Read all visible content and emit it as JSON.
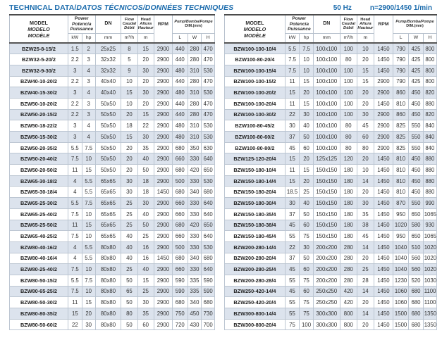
{
  "page": {
    "title_en": "TECHNICAL DATA/",
    "title_intl": "DATOS TÉCNICOS/DONNÉES TECHNIQUES",
    "frequency": "50 Hz",
    "speed": "n=2900/1450 1/min"
  },
  "colors": {
    "accent_blue": "#1c6cad",
    "row_shade": "#dce3ed",
    "border_light": "#b7c1cd",
    "border_dark": "#4b4b4b"
  },
  "header": {
    "model": [
      "MODEL",
      "MODELO",
      "MODÈLE"
    ],
    "power": [
      "Power",
      "Potencia",
      "Puissance"
    ],
    "dn": "DN",
    "flow": [
      "Flow",
      "Caudal",
      "Débit"
    ],
    "head": [
      "Head",
      "Altura",
      "Hauteur"
    ],
    "rpm": "RPM",
    "dim": [
      "Pump/Bomba/Pompe",
      "DIM.(mm)"
    ],
    "units": {
      "kw": "kW",
      "hp": "hp",
      "mm": "mm",
      "flow": "m³/h",
      "head": "m",
      "l": "L",
      "w": "W",
      "h": "H"
    }
  },
  "tables": {
    "left": {
      "rows": [
        [
          "BZW25-8-15/2",
          "1.5",
          "2",
          "25x25",
          "8",
          "15",
          "2900",
          "440",
          "280",
          "470"
        ],
        [
          "BZW32-5-20/2",
          "2.2",
          "3",
          "32x32",
          "5",
          "20",
          "2900",
          "440",
          "280",
          "470"
        ],
        [
          "BZW32-9-30/2",
          "3",
          "4",
          "32x32",
          "9",
          "30",
          "2900",
          "480",
          "310",
          "530"
        ],
        [
          "BZW40-10-20/2",
          "2.2",
          "3",
          "40x40",
          "10",
          "20",
          "2900",
          "440",
          "280",
          "470"
        ],
        [
          "BZW40-15-30/2",
          "3",
          "4",
          "40x40",
          "15",
          "30",
          "2900",
          "480",
          "310",
          "530"
        ],
        [
          "BZW50-10-20/2",
          "2.2",
          "3",
          "50x50",
          "10",
          "20",
          "2900",
          "440",
          "280",
          "470"
        ],
        [
          "BZW50-20-15/2",
          "2.2",
          "3",
          "50x50",
          "20",
          "15",
          "2900",
          "440",
          "280",
          "470"
        ],
        [
          "BZW50-18-22/2",
          "3",
          "4",
          "50x50",
          "18",
          "22",
          "2900",
          "480",
          "310",
          "530"
        ],
        [
          "BZW50-15-30/2",
          "3",
          "4",
          "50x50",
          "15",
          "30",
          "2900",
          "480",
          "310",
          "530"
        ],
        [
          "BZW50-20-35/2",
          "5.5",
          "7.5",
          "50x50",
          "20",
          "35",
          "2900",
          "680",
          "350",
          "630"
        ],
        [
          "BZW50-20-40/2",
          "7.5",
          "10",
          "50x50",
          "20",
          "40",
          "2900",
          "660",
          "330",
          "640"
        ],
        [
          "BZW50-20-50/2",
          "11",
          "15",
          "50x50",
          "20",
          "50",
          "2900",
          "680",
          "420",
          "650"
        ],
        [
          "BZW65-30-18/2",
          "4",
          "5.5",
          "65x65",
          "30",
          "18",
          "2900",
          "500",
          "330",
          "530"
        ],
        [
          "BZW65-30-18/4",
          "4",
          "5.5",
          "65x65",
          "30",
          "18",
          "1450",
          "680",
          "340",
          "680"
        ],
        [
          "BZW65-25-30/2",
          "5.5",
          "7.5",
          "65x65",
          "25",
          "30",
          "2900",
          "660",
          "330",
          "640"
        ],
        [
          "BZW65-25-40/2",
          "7.5",
          "10",
          "65x65",
          "25",
          "40",
          "2900",
          "660",
          "330",
          "640"
        ],
        [
          "BZW65-25-50/2",
          "11",
          "15",
          "65x65",
          "25",
          "50",
          "2900",
          "680",
          "420",
          "650"
        ],
        [
          "BZW65-40-25/2",
          "7.5",
          "10",
          "65x65",
          "40",
          "25",
          "2900",
          "660",
          "330",
          "640"
        ],
        [
          "BZW80-40-16/2",
          "4",
          "5.5",
          "80x80",
          "40",
          "16",
          "2900",
          "500",
          "330",
          "530"
        ],
        [
          "BZW80-40-16/4",
          "4",
          "5.5",
          "80x80",
          "40",
          "16",
          "1450",
          "680",
          "340",
          "680"
        ],
        [
          "BZW80-25-40/2",
          "7.5",
          "10",
          "80x80",
          "25",
          "40",
          "2900",
          "660",
          "330",
          "640"
        ],
        [
          "BZW80-50-15/2",
          "5.5",
          "7.5",
          "80x80",
          "50",
          "15",
          "2900",
          "590",
          "335",
          "590"
        ],
        [
          "BZW80-65-25/2",
          "7.5",
          "10",
          "80x80",
          "65",
          "25",
          "2900",
          "590",
          "335",
          "590"
        ],
        [
          "BZW80-50-30/2",
          "11",
          "15",
          "80x80",
          "50",
          "30",
          "2900",
          "680",
          "340",
          "680"
        ],
        [
          "BZW80-80-35/2",
          "15",
          "20",
          "80x80",
          "80",
          "35",
          "2900",
          "750",
          "450",
          "730"
        ],
        [
          "BZW80-50-60/2",
          "22",
          "30",
          "80x80",
          "50",
          "60",
          "2900",
          "720",
          "430",
          "700"
        ]
      ]
    },
    "right": {
      "rows": [
        [
          "BZW100-100-10/4",
          "5.5",
          "7.5",
          "100x100",
          "100",
          "10",
          "1450",
          "790",
          "425",
          "800"
        ],
        [
          "BZW100-80-20/4",
          "7.5",
          "10",
          "100x100",
          "80",
          "20",
          "1450",
          "790",
          "425",
          "800"
        ],
        [
          "BZW100-100-15/4",
          "7.5",
          "10",
          "100x100",
          "100",
          "15",
          "1450",
          "790",
          "425",
          "800"
        ],
        [
          "BZW100-100-15/2",
          "11",
          "15",
          "100x100",
          "100",
          "15",
          "2900",
          "790",
          "425",
          "800"
        ],
        [
          "BZW100-100-20/2",
          "15",
          "20",
          "100x100",
          "100",
          "20",
          "2900",
          "860",
          "450",
          "820"
        ],
        [
          "BZW100-100-20/4",
          "11",
          "15",
          "100x100",
          "100",
          "20",
          "1450",
          "810",
          "450",
          "880"
        ],
        [
          "BZW100-100-30/2",
          "22",
          "30",
          "100x100",
          "100",
          "30",
          "2900",
          "860",
          "450",
          "820"
        ],
        [
          "BZW100-80-45/2",
          "30",
          "40",
          "100x100",
          "80",
          "45",
          "2900",
          "825",
          "550",
          "840"
        ],
        [
          "BZW100-80-60/2",
          "37",
          "50",
          "100x100",
          "80",
          "60",
          "2900",
          "825",
          "550",
          "840"
        ],
        [
          "BZW100-80-80/2",
          "45",
          "60",
          "100x100",
          "80",
          "80",
          "2900",
          "825",
          "550",
          "840"
        ],
        [
          "BZW125-120-20/4",
          "15",
          "20",
          "125x125",
          "120",
          "20",
          "1450",
          "810",
          "450",
          "880"
        ],
        [
          "BZW150-180-10/4",
          "11",
          "15",
          "150x150",
          "180",
          "10",
          "1450",
          "810",
          "450",
          "880"
        ],
        [
          "BZW150-180-14/4",
          "15",
          "20",
          "150x150",
          "180",
          "14",
          "1450",
          "810",
          "450",
          "880"
        ],
        [
          "BZW150-180-20/4",
          "18.5",
          "25",
          "150x150",
          "180",
          "20",
          "1450",
          "810",
          "450",
          "880"
        ],
        [
          "BZW150-180-30/4",
          "30",
          "40",
          "150x150",
          "180",
          "30",
          "1450",
          "870",
          "550",
          "990"
        ],
        [
          "BZW150-180-35/4",
          "37",
          "50",
          "150x150",
          "180",
          "35",
          "1450",
          "950",
          "650",
          "1065"
        ],
        [
          "BZW150-180-38/4",
          "45",
          "60",
          "150x150",
          "180",
          "38",
          "1450",
          "1020",
          "580",
          "930"
        ],
        [
          "BZW150-180-45/4",
          "55",
          "75",
          "150x150",
          "180",
          "45",
          "1450",
          "950",
          "650",
          "1065"
        ],
        [
          "BZW200-280-14/4",
          "22",
          "30",
          "200x200",
          "280",
          "14",
          "1450",
          "1040",
          "510",
          "1020"
        ],
        [
          "BZW200-280-20/4",
          "37",
          "50",
          "200x200",
          "280",
          "20",
          "1450",
          "1040",
          "560",
          "1020"
        ],
        [
          "BZW200-280-25/4",
          "45",
          "60",
          "200x200",
          "280",
          "25",
          "1450",
          "1040",
          "560",
          "1020"
        ],
        [
          "BZW200-280-28/4",
          "55",
          "75",
          "200x200",
          "280",
          "28",
          "1450",
          "1230",
          "520",
          "1030"
        ],
        [
          "BZW250-420-14/4",
          "45",
          "60",
          "250x250",
          "420",
          "14",
          "1450",
          "1060",
          "680",
          "1100"
        ],
        [
          "BZW250-420-20/4",
          "55",
          "75",
          "250x250",
          "420",
          "20",
          "1450",
          "1060",
          "680",
          "1100"
        ],
        [
          "BZW300-800-14/4",
          "55",
          "75",
          "300x300",
          "800",
          "14",
          "1450",
          "1500",
          "680",
          "1350"
        ],
        [
          "BZW300-800-20/4",
          "75",
          "100",
          "300x300",
          "800",
          "20",
          "1450",
          "1500",
          "680",
          "1350"
        ]
      ]
    }
  }
}
